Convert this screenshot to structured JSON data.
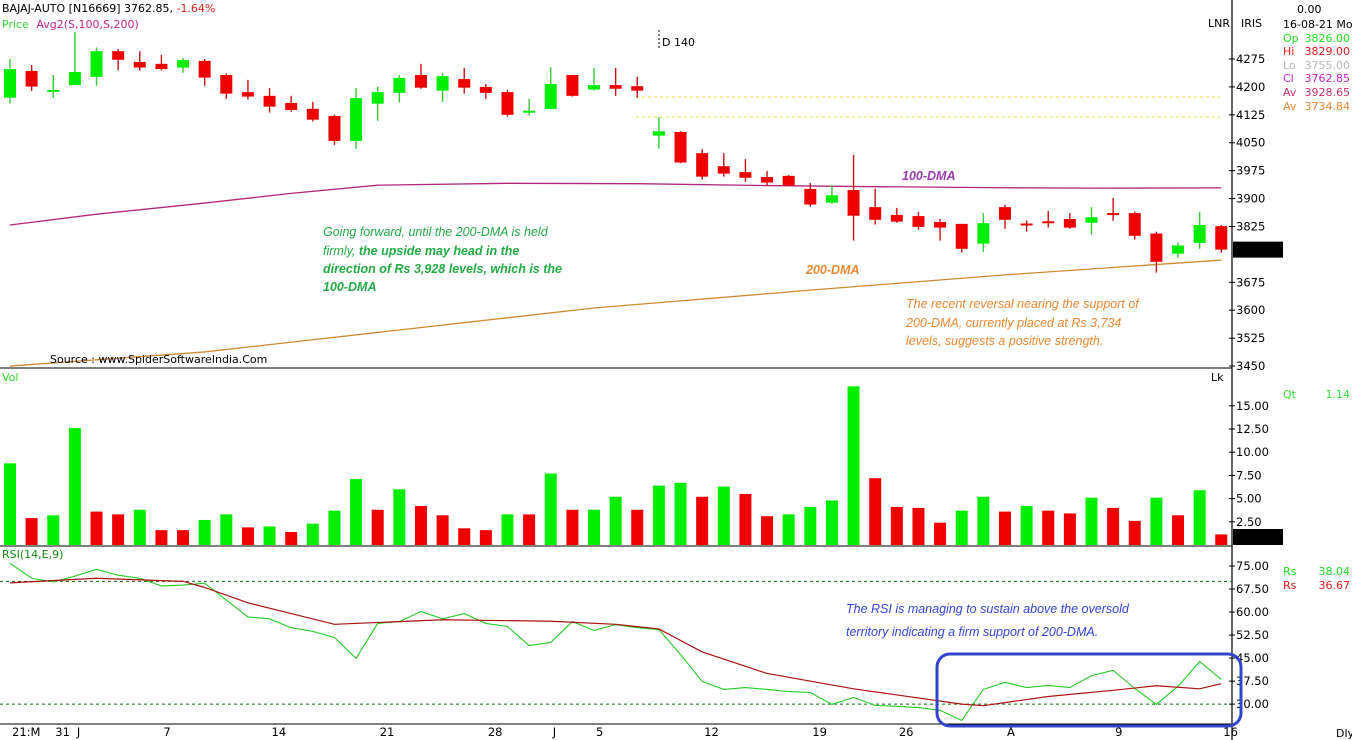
{
  "header": {
    "symbol": "BAJAJ-AUTO [N16669]",
    "last_price": "3762.85,",
    "change_pct": "-1.64%",
    "price_label": "Price",
    "avg_label": "Avg2(S,100,S,200)",
    "marker_label": "D 140",
    "source": "Source : www.SpiderSoftwareIndia.Com"
  },
  "right_panel": {
    "lnr": "LNR",
    "iris": "IRIS",
    "top_value": "0.00",
    "date": "16-08-21 Mo",
    "rows": [
      {
        "label": "Op",
        "value": "3826.00",
        "color": "#22dd22"
      },
      {
        "label": "Hi",
        "value": "3829.00",
        "color": "#dd1c1c"
      },
      {
        "label": "Lo",
        "value": "3755.00",
        "color": "#b8b8b8"
      },
      {
        "label": "Cl",
        "value": "3762.85",
        "color": "#cc22cc"
      },
      {
        "label": "Av",
        "value": "3928.65",
        "color": "#d0306a"
      },
      {
        "label": "Av",
        "value": "3734.84",
        "color": "#ee8833"
      }
    ],
    "vol_unit": "Lk",
    "qt_label": "Qt",
    "qt_value": "1.14",
    "rsi_rows": [
      {
        "label": "Rs",
        "value": "38.04",
        "color": "#22dd22"
      },
      {
        "label": "Rs",
        "value": "36.67",
        "color": "#dd1c1c"
      }
    ],
    "period": "Dly"
  },
  "annotations": {
    "green": {
      "line1": "Going forward, until the 200-DMA is held",
      "line2a": "firmly, ",
      "line2b": "the upside may head in the",
      "line3": "direction of Rs 3,928 levels, which is the",
      "line4": "100-DMA"
    },
    "orange": {
      "line1": "The recent reversal nearing the support of",
      "line2": "200-DMA, currently placed at Rs 3,734",
      "line3": "levels, suggests a positive strength."
    },
    "rsi": {
      "line1": "The RSI is managing to sustain above the oversold",
      "line2": "territory indicating a firm support of 200-DMA."
    },
    "ma100_label": "100-DMA",
    "ma200_label": "200-DMA"
  },
  "colors": {
    "up": "#00ee00",
    "down": "#ee0000",
    "ma100": "#b0287a",
    "ma200": "#d08a30",
    "rsi": "#22cc22",
    "signal": "#aa1111",
    "highlight": "#3344cc",
    "guide": "#e8e040"
  },
  "chart_data": [
    {
      "type": "candlestick",
      "title": "BAJAJ-AUTO daily",
      "ylim": [
        3450,
        4300
      ],
      "yticks": [
        "4275",
        "4200",
        "4125",
        "4050",
        "3975",
        "3900",
        "3825",
        "3675",
        "3600",
        "3525",
        "3450"
      ],
      "last_label": "3762.85",
      "ohlc": [
        [
          4171,
          4275,
          4155,
          4248
        ],
        [
          4243,
          4259,
          4189,
          4201
        ],
        [
          4191,
          4232,
          4171,
          4192
        ],
        [
          4205,
          4347,
          4205,
          4240
        ],
        [
          4227,
          4306,
          4203,
          4296
        ],
        [
          4296,
          4302,
          4245,
          4273
        ],
        [
          4267,
          4296,
          4244,
          4252
        ],
        [
          4262,
          4286,
          4244,
          4248
        ],
        [
          4252,
          4278,
          4238,
          4272
        ],
        [
          4270,
          4275,
          4203,
          4225
        ],
        [
          4232,
          4236,
          4168,
          4182
        ],
        [
          4186,
          4219,
          4166,
          4174
        ],
        [
          4176,
          4197,
          4131,
          4147
        ],
        [
          4157,
          4176,
          4133,
          4138
        ],
        [
          4141,
          4160,
          4107,
          4112
        ],
        [
          4122,
          4125,
          4044,
          4055
        ],
        [
          4055,
          4197,
          4034,
          4170
        ],
        [
          4155,
          4200,
          4109,
          4186
        ],
        [
          4184,
          4232,
          4158,
          4224
        ],
        [
          4232,
          4262,
          4195,
          4198
        ],
        [
          4190,
          4237,
          4160,
          4229
        ],
        [
          4221,
          4251,
          4182,
          4198
        ],
        [
          4200,
          4208,
          4168,
          4184
        ],
        [
          4186,
          4192,
          4120,
          4125
        ],
        [
          4134,
          4168,
          4123,
          4136
        ],
        [
          4141,
          4253,
          4141,
          4208
        ],
        [
          4232,
          4232,
          4174,
          4176
        ],
        [
          4193,
          4251,
          4190,
          4205
        ],
        [
          4205,
          4251,
          4176,
          4195
        ],
        [
          4202,
          4227,
          4171,
          4190
        ],
        [
          4069,
          4119,
          4034,
          4081
        ],
        [
          4079,
          4081,
          3995,
          3997
        ],
        [
          4022,
          4033,
          3951,
          3959
        ],
        [
          3987,
          4022,
          3959,
          3967
        ],
        [
          3971,
          4006,
          3945,
          3956
        ],
        [
          3958,
          3974,
          3935,
          3943
        ],
        [
          3961,
          3963,
          3935,
          3935
        ],
        [
          3926,
          3942,
          3878,
          3884
        ],
        [
          3889,
          3936,
          3886,
          3909
        ],
        [
          3923,
          4017,
          3787,
          3854
        ],
        [
          3877,
          3927,
          3830,
          3843
        ],
        [
          3856,
          3875,
          3835,
          3838
        ],
        [
          3853,
          3864,
          3816,
          3824
        ],
        [
          3837,
          3845,
          3787,
          3822
        ],
        [
          3832,
          3832,
          3755,
          3765
        ],
        [
          3779,
          3861,
          3757,
          3834
        ],
        [
          3877,
          3883,
          3819,
          3843
        ],
        [
          3833,
          3841,
          3811,
          3831
        ],
        [
          3839,
          3867,
          3822,
          3837
        ],
        [
          3845,
          3861,
          3819,
          3822
        ],
        [
          3835,
          3877,
          3803,
          3850
        ],
        [
          3861,
          3902,
          3840,
          3859
        ],
        [
          3861,
          3865,
          3790,
          3800
        ],
        [
          3806,
          3811,
          3701,
          3730
        ],
        [
          3752,
          3782,
          3741,
          3774
        ],
        [
          3781,
          3864,
          3765,
          3829
        ],
        [
          3826,
          3829,
          3755,
          3762.85
        ]
      ],
      "guides": [
        4173,
        4119
      ],
      "ma100": [
        [
          0,
          3829
        ],
        [
          4,
          3858
        ],
        [
          9,
          3888
        ],
        [
          13,
          3914
        ],
        [
          17,
          3936
        ],
        [
          23,
          3941
        ],
        [
          29,
          3940
        ],
        [
          35,
          3935
        ],
        [
          40,
          3932
        ],
        [
          46,
          3929
        ],
        [
          50,
          3928
        ],
        [
          56,
          3928.65
        ]
      ],
      "ma200": [
        [
          0,
          3450
        ],
        [
          9,
          3488
        ],
        [
          18,
          3547
        ],
        [
          27,
          3606
        ],
        [
          37,
          3654
        ],
        [
          46,
          3695
        ],
        [
          56,
          3734.84
        ]
      ],
      "x_labels": [
        {
          "i": 0,
          "t": "21:M"
        },
        {
          "i": 2,
          "t": "31"
        },
        {
          "i": 3,
          "t": "J"
        },
        {
          "i": 7,
          "t": "7"
        },
        {
          "i": 12,
          "t": "14"
        },
        {
          "i": 17,
          "t": "21"
        },
        {
          "i": 22,
          "t": "28"
        },
        {
          "i": 25,
          "t": "J"
        },
        {
          "i": 27,
          "t": "5"
        },
        {
          "i": 32,
          "t": "12"
        },
        {
          "i": 37,
          "t": "19"
        },
        {
          "i": 41,
          "t": "26"
        },
        {
          "i": 46,
          "t": "A"
        },
        {
          "i": 51,
          "t": "9"
        },
        {
          "i": 56,
          "t": "16"
        }
      ]
    },
    {
      "type": "bar",
      "title": "Vol",
      "ylabel": "Lk",
      "ylim": [
        0,
        17.5
      ],
      "yticks": [
        "15.00",
        "12.50",
        "10.00",
        "7.50",
        "5.00",
        "2.50"
      ],
      "last_label": "1.14",
      "values": [
        8.8,
        2.9,
        3.2,
        12.6,
        3.6,
        3.3,
        3.8,
        1.6,
        1.6,
        2.7,
        3.3,
        1.9,
        2.0,
        1.4,
        2.3,
        3.7,
        7.1,
        3.8,
        6.0,
        4.2,
        3.2,
        1.8,
        1.6,
        3.3,
        3.3,
        7.7,
        3.8,
        3.8,
        5.2,
        3.8,
        6.4,
        6.7,
        5.2,
        6.3,
        5.5,
        3.1,
        3.3,
        4.1,
        4.8,
        17.1,
        7.2,
        4.1,
        4.0,
        2.4,
        3.7,
        5.2,
        3.6,
        4.2,
        3.7,
        3.4,
        5.1,
        4.0,
        2.6,
        5.1,
        3.2,
        5.9,
        1.14
      ],
      "colors": "GRGGRRGRRGGRGRGGGRGRRRRGRGRGGRGGRGRRGGGGRRRRGGRGRRGRRGRGR"
    },
    {
      "type": "line",
      "title": "RSI(14,E,9)",
      "ylim": [
        20,
        82
      ],
      "yticks": [
        "75.00",
        "67.50",
        "60.00",
        "52.50",
        "45.00",
        "37.50",
        "30.00"
      ],
      "levels": [
        70,
        30
      ],
      "rsi": [
        75.9,
        71,
        69.8,
        71.7,
        73.9,
        72,
        71,
        68.5,
        68.8,
        69.4,
        63.9,
        58.4,
        57.8,
        54.9,
        53.7,
        51.7,
        44.9,
        56.3,
        56.9,
        60.2,
        57.8,
        59.5,
        56.3,
        55.3,
        49.1,
        50.1,
        56.9,
        54,
        55.9,
        54.9,
        54.3,
        46.2,
        37.4,
        34.8,
        35.4,
        34.8,
        34.1,
        33.8,
        29.9,
        32.2,
        29.6,
        29.3,
        28.9,
        28,
        24.7,
        34.8,
        37.1,
        35.4,
        36.1,
        35.4,
        39.3,
        41,
        35.1,
        29.9,
        35.8,
        43.9,
        38.04
      ],
      "signal": [
        [
          0,
          69.5
        ],
        [
          4,
          71
        ],
        [
          8,
          70
        ],
        [
          9,
          68
        ],
        [
          11,
          63
        ],
        [
          13,
          59.5
        ],
        [
          15,
          56
        ],
        [
          20,
          57.5
        ],
        [
          25,
          57
        ],
        [
          28,
          56
        ],
        [
          30,
          54.5
        ],
        [
          32,
          47
        ],
        [
          35,
          40
        ],
        [
          39,
          35
        ],
        [
          44,
          30
        ],
        [
          45,
          29.5
        ],
        [
          48,
          32.5
        ],
        [
          51,
          34.5
        ],
        [
          53,
          36
        ],
        [
          55,
          35
        ],
        [
          56,
          36.67
        ]
      ]
    }
  ]
}
